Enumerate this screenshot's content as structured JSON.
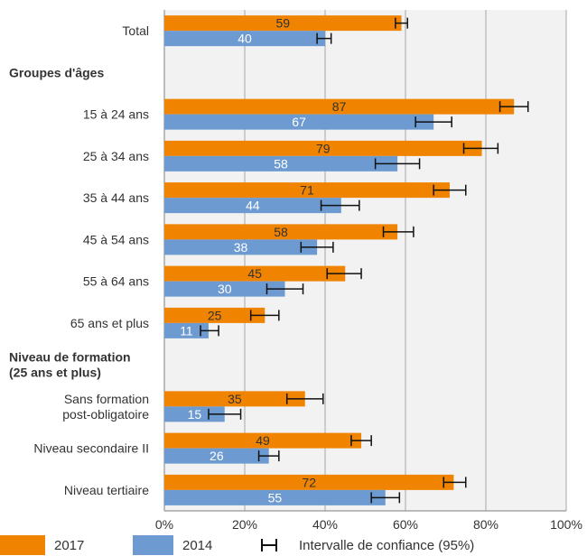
{
  "chart_data": {
    "type": "bar",
    "orientation": "horizontal",
    "x_axis": {
      "min": 0,
      "max": 100,
      "tick_labels": [
        "0%",
        "20%",
        "40%",
        "60%",
        "80%",
        "100%"
      ]
    },
    "grid": true,
    "legend_position": "bottom",
    "categories": [
      {
        "label": "Total",
        "heading": false
      },
      {
        "label": "Groupes d'âges",
        "heading": true
      },
      {
        "label": "15 à 24 ans",
        "heading": false
      },
      {
        "label": "25 à 34 ans",
        "heading": false
      },
      {
        "label": "35 à 44 ans",
        "heading": false
      },
      {
        "label": "45 à 54 ans",
        "heading": false
      },
      {
        "label": "55 à 64 ans",
        "heading": false
      },
      {
        "label": "65 ans et plus",
        "heading": false
      },
      {
        "label": "Niveau de formation\n(25 ans et plus)",
        "heading": true
      },
      {
        "label": "Sans formation\npost-obligatoire",
        "heading": false
      },
      {
        "label": "Niveau secondaire II",
        "heading": false
      },
      {
        "label": "Niveau tertiaire",
        "heading": false
      }
    ],
    "series": [
      {
        "name": "2017",
        "color": "#f08300",
        "label_color": "#333333",
        "values": [
          59,
          null,
          87,
          79,
          71,
          58,
          45,
          25,
          null,
          35,
          49,
          72
        ],
        "ci_low": [
          57.5,
          null,
          83.5,
          74.5,
          67,
          54.5,
          40.5,
          21.5,
          null,
          30.5,
          46.5,
          69.5
        ],
        "ci_high": [
          60.5,
          null,
          90.5,
          83,
          75,
          62,
          49,
          28.5,
          null,
          39.5,
          51.5,
          75
        ]
      },
      {
        "name": "2014",
        "color": "#6d9bd1",
        "label_color": "#ffffff",
        "values": [
          40,
          null,
          67,
          58,
          44,
          38,
          30,
          11,
          null,
          15,
          26,
          55
        ],
        "ci_low": [
          38,
          null,
          62.5,
          52.5,
          39,
          34,
          25.5,
          9,
          null,
          11,
          23.5,
          51.5
        ],
        "ci_high": [
          41.5,
          null,
          71.5,
          63.5,
          48.5,
          42,
          34.5,
          13.5,
          null,
          19,
          28.5,
          58.5
        ]
      }
    ],
    "ci_legend": "Intervalle de confiance (95%)"
  }
}
